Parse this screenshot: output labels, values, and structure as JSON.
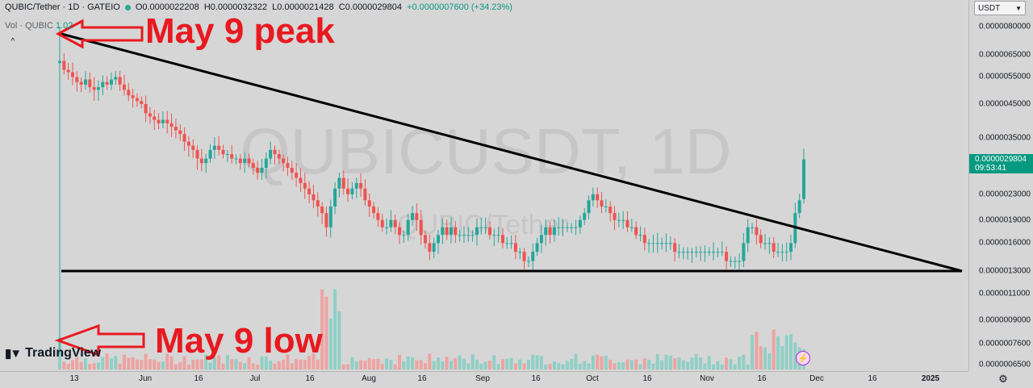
{
  "header": {
    "symbol": "QUBIC/Tether · 1D · GATEIO",
    "open": "O0.0000022208",
    "high": "H0.0000032322",
    "low": "L0.0000021428",
    "close": "C0.0000029804",
    "change": "+0.0000007600 (+34.23%)",
    "volume_label": "Vol · QUBIC",
    "volume_value": "1.02",
    "collapse_glyph": "^",
    "up_color": "#26a69a",
    "down_color": "#ef5350"
  },
  "currency": {
    "selected": "USDT"
  },
  "last_price": {
    "price": "0.0000029804",
    "countdown": "09:53:41"
  },
  "watermark": {
    "symbol": "QUBICUSDT, 1D",
    "description": "QUBIC/Tether"
  },
  "branding": {
    "logo_text": "TradingView"
  },
  "annotations": [
    {
      "text": "May 9 peak",
      "color": "#e8191f"
    },
    {
      "text": "May 9 low",
      "color": "#e8191f"
    }
  ],
  "icons": {
    "settings": "gear-icon",
    "bolt": "lightning-icon",
    "arrow": "arrow-left-icon"
  },
  "chart_data": {
    "type": "candlestick",
    "price_scale": {
      "type": "log",
      "ticks": [
        "0.0000080000",
        "0.0000065000",
        "0.0000055000",
        "0.0000045000",
        "0.0000035000",
        "0.0000023000",
        "0.0000019000",
        "0.0000016000",
        "0.0000013000",
        "0.0000011000",
        "0.0000009000",
        "0.0000007600",
        "0.0000006500"
      ]
    },
    "time_ticks": [
      "13",
      "Jun",
      "16",
      "Jul",
      "16",
      "Aug",
      "16",
      "Sep",
      "16",
      "Oct",
      "16",
      "Nov",
      "16",
      "Dec",
      "16",
      "2025"
    ],
    "series": [
      {
        "name": "QUBIC/Tether",
        "close": [
          6.2e-06,
          5.8e-06,
          5.7e-06,
          5.5e-06,
          5.3e-06,
          5.2e-06,
          5.4e-06,
          5.1e-06,
          5e-06,
          5.1e-06,
          5.3e-06,
          5.2e-06,
          5.4e-06,
          5.5e-06,
          5.2e-06,
          5e-06,
          4.8e-06,
          4.7e-06,
          4.6e-06,
          4.5e-06,
          4.2e-06,
          4.1e-06,
          4e-06,
          3.9e-06,
          4e-06,
          3.9e-06,
          3.8e-06,
          3.7e-06,
          3.6e-06,
          3.4e-06,
          3.3e-06,
          3.2e-06,
          3e-06,
          2.9e-06,
          3e-06,
          3.2e-06,
          3.3e-06,
          3.2e-06,
          3.1e-06,
          3.1e-06,
          3e-06,
          3e-06,
          2.9e-06,
          3e-06,
          2.9e-06,
          2.8e-06,
          2.7e-06,
          2.8e-06,
          3e-06,
          3.2e-06,
          3.1e-06,
          3e-06,
          2.9e-06,
          2.8e-06,
          2.7e-06,
          2.6e-06,
          2.5e-06,
          2.4e-06,
          2.3e-06,
          2.2e-06,
          2.1e-06,
          2e-06,
          1.8e-06,
          2.1e-06,
          2.4e-06,
          2.6e-06,
          2.4e-06,
          2.3e-06,
          2.4e-06,
          2.5e-06,
          2.4e-06,
          2.2e-06,
          2.1e-06,
          2e-06,
          1.9e-06,
          1.8e-06,
          1.8e-06,
          1.9e-06,
          1.8e-06,
          1.7e-06,
          1.7e-06,
          1.9e-06,
          2e-06,
          1.9e-06,
          1.7e-06,
          1.6e-06,
          1.5e-06,
          1.6e-06,
          1.7e-06,
          1.8e-06,
          1.7e-06,
          1.8e-06,
          1.7e-06,
          1.7e-06,
          1.7e-06,
          1.7e-06,
          1.7e-06,
          1.8e-06,
          1.8e-06,
          1.8e-06,
          1.7e-06,
          1.7e-06,
          1.7e-06,
          1.6e-06,
          1.6e-06,
          1.6e-06,
          1.5e-06,
          1.5e-06,
          1.4e-06,
          1.4e-06,
          1.5e-06,
          1.6e-06,
          1.7e-06,
          1.8e-06,
          1.7e-06,
          1.8e-06,
          1.8e-06,
          1.8e-06,
          1.8e-06,
          1.8e-06,
          1.8e-06,
          1.9e-06,
          2e-06,
          2.2e-06,
          2.3e-06,
          2.2e-06,
          2.1e-06,
          2.1e-06,
          2e-06,
          1.9e-06,
          1.9e-06,
          1.9e-06,
          1.8e-06,
          1.8e-06,
          1.7e-06,
          1.7e-06,
          1.6e-06,
          1.6e-06,
          1.6e-06,
          1.6e-06,
          1.6e-06,
          1.6e-06,
          1.6e-06,
          1.5e-06,
          1.5e-06,
          1.5e-06,
          1.5e-06,
          1.5e-06,
          1.5e-06,
          1.5e-06,
          1.5e-06,
          1.5e-06,
          1.5e-06,
          1.5e-06,
          1.5e-06,
          1.4e-06,
          1.4e-06,
          1.4e-06,
          1.4e-06,
          1.6e-06,
          1.8e-06,
          1.8e-06,
          1.7e-06,
          1.6e-06,
          1.6e-06,
          1.6e-06,
          1.5e-06,
          1.5e-06,
          1.5e-06,
          1.5e-06,
          1.6e-06,
          2e-06,
          2.2e-06,
          2.9804e-06
        ]
      }
    ],
    "annotations": [
      {
        "text": "May 9 peak",
        "target": "high of first candle"
      },
      {
        "text": "May 9 low",
        "target": "low of first candle"
      }
    ],
    "trendlines": [
      {
        "kind": "descending",
        "from_price": 8e-06,
        "to_price": 1.3e-06
      },
      {
        "kind": "horizontal",
        "price": 1.3e-06
      }
    ]
  }
}
